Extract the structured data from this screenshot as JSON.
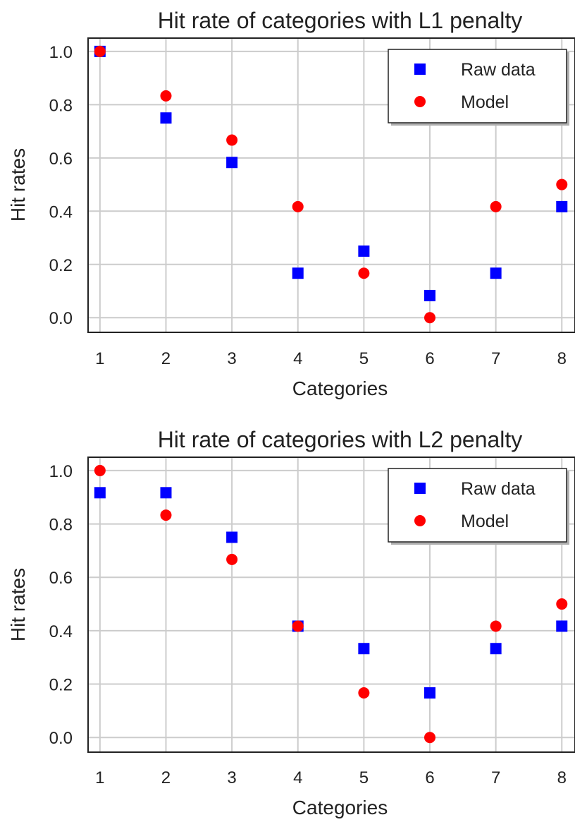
{
  "chart_data": [
    {
      "type": "scatter",
      "title": "Hit rate of categories with L1 penalty",
      "xlabel": "Categories",
      "ylabel": "Hit rates",
      "x": [
        1,
        2,
        3,
        4,
        5,
        6,
        7,
        8
      ],
      "xticks": [
        "1",
        "2",
        "3",
        "4",
        "5",
        "6",
        "7",
        "8"
      ],
      "yticks": [
        "0.0",
        "0.2",
        "0.4",
        "0.6",
        "0.8",
        "1.0"
      ],
      "xlim": [
        0.82,
        8.2
      ],
      "ylim": [
        -0.055,
        1.05
      ],
      "grid": true,
      "legend_position": "top-right",
      "series": [
        {
          "name": "Raw data",
          "marker": "square",
          "color": "#0000ff",
          "values": [
            1.0,
            0.75,
            0.583,
            0.167,
            0.25,
            0.083,
            0.167,
            0.417
          ]
        },
        {
          "name": "Model",
          "marker": "circle",
          "color": "#ff0000",
          "values": [
            1.0,
            0.833,
            0.667,
            0.417,
            0.167,
            0.0,
            0.417,
            0.5
          ]
        }
      ]
    },
    {
      "type": "scatter",
      "title": "Hit rate of categories with L2 penalty",
      "xlabel": "Categories",
      "ylabel": "Hit rates",
      "x": [
        1,
        2,
        3,
        4,
        5,
        6,
        7,
        8
      ],
      "xticks": [
        "1",
        "2",
        "3",
        "4",
        "5",
        "6",
        "7",
        "8"
      ],
      "yticks": [
        "0.0",
        "0.2",
        "0.4",
        "0.6",
        "0.8",
        "1.0"
      ],
      "xlim": [
        0.82,
        8.2
      ],
      "ylim": [
        -0.055,
        1.05
      ],
      "grid": true,
      "legend_position": "top-right",
      "series": [
        {
          "name": "Raw data",
          "marker": "square",
          "color": "#0000ff",
          "values": [
            0.917,
            0.917,
            0.75,
            0.417,
            0.333,
            0.167,
            0.333,
            0.417
          ]
        },
        {
          "name": "Model",
          "marker": "circle",
          "color": "#ff0000",
          "values": [
            1.0,
            0.833,
            0.667,
            0.417,
            0.167,
            0.0,
            0.417,
            0.5
          ]
        }
      ]
    }
  ]
}
